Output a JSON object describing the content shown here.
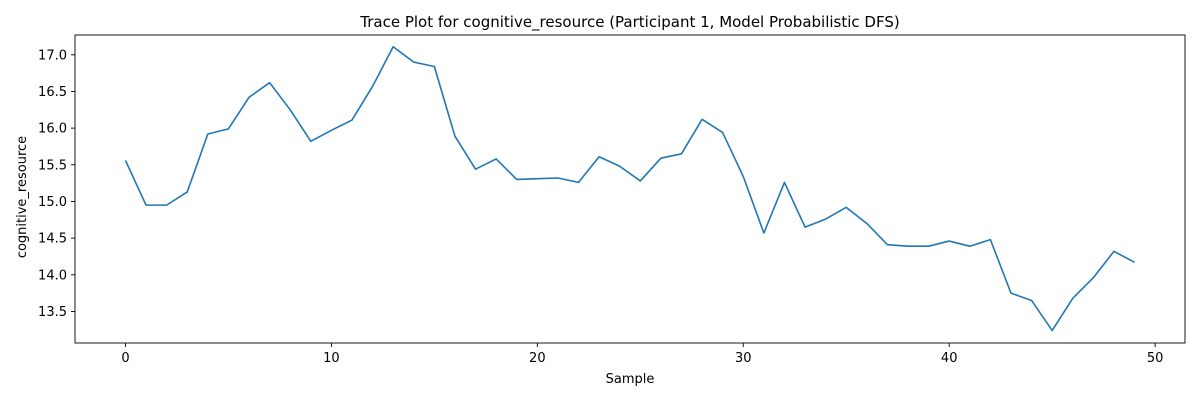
{
  "chart_data": {
    "type": "line",
    "title": "Trace Plot for cognitive_resource (Participant 1, Model Probabilistic DFS)",
    "xlabel": "Sample",
    "ylabel": "cognitive_resource",
    "xlim": [
      -2.45,
      51.45
    ],
    "ylim": [
      13.07,
      17.27
    ],
    "xticks": [
      0,
      10,
      20,
      30,
      40,
      50
    ],
    "yticks": [
      13.5,
      14.0,
      14.5,
      15.0,
      15.5,
      16.0,
      16.5,
      17.0
    ],
    "xtick_labels": [
      "0",
      "10",
      "20",
      "30",
      "40",
      "50"
    ],
    "ytick_labels": [
      "13.5",
      "14.0",
      "14.5",
      "15.0",
      "15.5",
      "16.0",
      "16.5",
      "17.0"
    ],
    "grid": false,
    "legend": "none",
    "series": [
      {
        "color": "#1f77b4",
        "x": [
          0,
          1,
          2,
          3,
          4,
          5,
          6,
          7,
          8,
          9,
          10,
          11,
          12,
          13,
          14,
          15,
          16,
          17,
          18,
          19,
          20,
          21,
          22,
          23,
          24,
          25,
          26,
          27,
          28,
          29,
          30,
          31,
          32,
          33,
          34,
          35,
          36,
          37,
          38,
          39,
          40,
          41,
          42,
          43,
          44,
          45,
          46,
          47,
          48,
          49
        ],
        "values": [
          15.56,
          14.95,
          14.95,
          15.13,
          15.92,
          15.99,
          16.42,
          16.62,
          16.25,
          15.82,
          15.97,
          16.11,
          16.57,
          17.11,
          16.9,
          16.84,
          15.89,
          15.44,
          15.58,
          15.3,
          15.31,
          15.32,
          15.26,
          15.61,
          15.48,
          15.28,
          15.59,
          15.65,
          16.12,
          15.94,
          15.34,
          14.57,
          15.26,
          14.65,
          14.76,
          14.92,
          14.7,
          14.41,
          14.39,
          14.39,
          14.46,
          14.39,
          14.48,
          13.75,
          13.65,
          13.24,
          13.68,
          13.96,
          14.32,
          14.17
        ]
      }
    ]
  }
}
